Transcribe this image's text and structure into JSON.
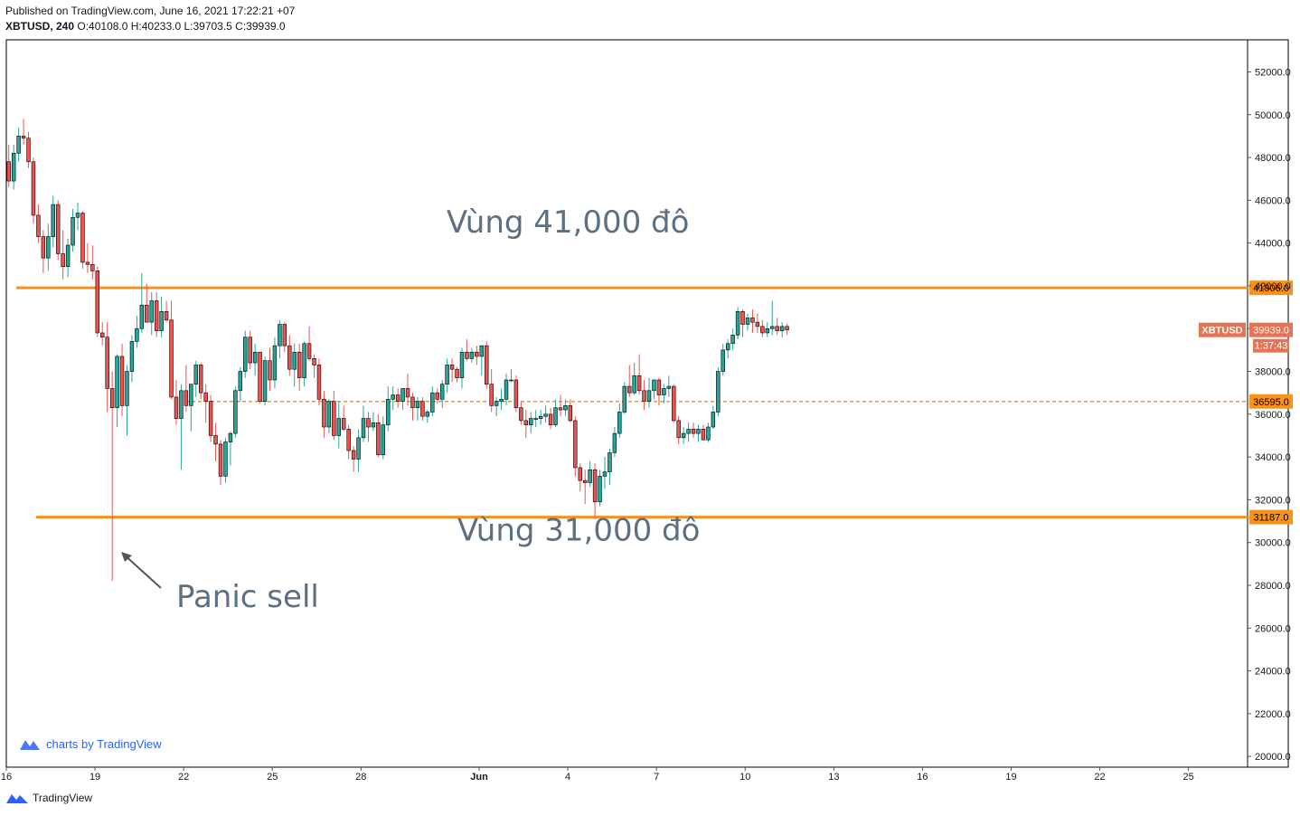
{
  "header": {
    "published": "Published on TradingView.com, June 16, 2021 17:22:21 +07",
    "symbol": "XBTUSD, 240",
    "ohlc": "O:40108.0 H:40233.0 L:39703.5 C:39939.0"
  },
  "footer": {
    "brand": "TradingView",
    "watermark": "charts by TradingView"
  },
  "colors": {
    "up": "#26a69a",
    "down": "#ef5350",
    "level": "#f7931a",
    "annotation": "#5d6f80",
    "price_tag": "#e57356"
  },
  "chart_data": {
    "type": "candlestick",
    "title": "XBTUSD, 240",
    "ylim": [
      19500,
      53500
    ],
    "xlim": [
      "2021-05-16",
      "2021-06-27"
    ],
    "y_ticks": [
      20000,
      22000,
      24000,
      26000,
      28000,
      30000,
      32000,
      34000,
      36000,
      38000,
      40000,
      42000,
      44000,
      46000,
      48000,
      50000,
      52000
    ],
    "x_ticks": [
      {
        "label": "16",
        "date": "2021-05-16"
      },
      {
        "label": "19",
        "date": "2021-05-19"
      },
      {
        "label": "22",
        "date": "2021-05-22"
      },
      {
        "label": "25",
        "date": "2021-05-25"
      },
      {
        "label": "28",
        "date": "2021-05-28"
      },
      {
        "label": "Jun",
        "date": "2021-06-01"
      },
      {
        "label": "4",
        "date": "2021-06-04"
      },
      {
        "label": "7",
        "date": "2021-06-07"
      },
      {
        "label": "10",
        "date": "2021-06-10"
      },
      {
        "label": "13",
        "date": "2021-06-13"
      },
      {
        "label": "16",
        "date": "2021-06-16"
      },
      {
        "label": "19",
        "date": "2021-06-19"
      },
      {
        "label": "22",
        "date": "2021-06-22"
      },
      {
        "label": "25",
        "date": "2021-06-25"
      }
    ],
    "levels": [
      {
        "price": 41906.0,
        "label": "41906.0",
        "style": "solid"
      },
      {
        "price": 36595.0,
        "label": "36595.0",
        "style": "dashed"
      },
      {
        "price": 31187.0,
        "label": "31187.0",
        "style": "solid"
      }
    ],
    "last_price": {
      "label": "XBTUSD",
      "value": "39939.0",
      "countdown": "1:37:43",
      "price": 39939
    },
    "annotations": [
      {
        "text": "Vùng 41,000 đô",
        "date": "2021-06-04",
        "price": 45000
      },
      {
        "text": "Vùng 31,000 đô",
        "date": "2021-06-04",
        "price": 30600
      },
      {
        "text": "Panic sell",
        "date": "2021-05-21",
        "price": 27500
      }
    ],
    "candle_start": "2021-05-16T00:00",
    "candle_hours": 4,
    "candles": [
      [
        47800,
        48600,
        46600,
        46900
      ],
      [
        46900,
        48600,
        46500,
        48200
      ],
      [
        48200,
        49400,
        47800,
        49000
      ],
      [
        49000,
        49800,
        48600,
        48900
      ],
      [
        48900,
        49200,
        47500,
        47800
      ],
      [
        47800,
        48000,
        44900,
        45300
      ],
      [
        45300,
        45800,
        44000,
        44300
      ],
      [
        44300,
        44600,
        42600,
        43300
      ],
      [
        43300,
        44900,
        42700,
        44300
      ],
      [
        44300,
        46200,
        43800,
        45800
      ],
      [
        45800,
        46000,
        43200,
        43500
      ],
      [
        43500,
        44600,
        42300,
        42900
      ],
      [
        42900,
        44200,
        42400,
        43900
      ],
      [
        43900,
        45600,
        43600,
        45200
      ],
      [
        45200,
        45900,
        44600,
        45400
      ],
      [
        45400,
        45500,
        42800,
        43100
      ],
      [
        43100,
        44000,
        42600,
        43000
      ],
      [
        43000,
        43900,
        42300,
        42700
      ],
      [
        42700,
        42900,
        39600,
        39800
      ],
      [
        39800,
        40300,
        39200,
        39600
      ],
      [
        39600,
        40300,
        36100,
        37200
      ],
      [
        37200,
        38000,
        28200,
        36300
      ],
      [
        36300,
        38800,
        35400,
        38700
      ],
      [
        38700,
        39300,
        35900,
        36400
      ],
      [
        36400,
        38300,
        35000,
        38000
      ],
      [
        38000,
        39700,
        37500,
        39400
      ],
      [
        39400,
        40600,
        39100,
        40000
      ],
      [
        40000,
        42600,
        39800,
        41100
      ],
      [
        41100,
        42100,
        40600,
        40300
      ],
      [
        40300,
        41700,
        39700,
        41300
      ],
      [
        41300,
        41700,
        39600,
        39900
      ],
      [
        39900,
        41500,
        39600,
        40800
      ],
      [
        40800,
        41300,
        40300,
        40400
      ],
      [
        40400,
        41300,
        36700,
        36800
      ],
      [
        36800,
        37600,
        35500,
        35800
      ],
      [
        35800,
        37400,
        33400,
        37100
      ],
      [
        37100,
        38300,
        36100,
        36400
      ],
      [
        36400,
        37200,
        35200,
        37400
      ],
      [
        37400,
        38500,
        36800,
        38300
      ],
      [
        38300,
        38400,
        36700,
        37000
      ],
      [
        37000,
        37400,
        35600,
        36600
      ],
      [
        36600,
        36900,
        34700,
        35000
      ],
      [
        35000,
        35600,
        33800,
        34600
      ],
      [
        34600,
        34800,
        32700,
        33100
      ],
      [
        33100,
        34900,
        32800,
        34700
      ],
      [
        34700,
        35200,
        33600,
        35100
      ],
      [
        35100,
        37300,
        34900,
        37100
      ],
      [
        37100,
        38200,
        36600,
        38000
      ],
      [
        38000,
        39900,
        37700,
        39600
      ],
      [
        39600,
        39900,
        38100,
        38400
      ],
      [
        38400,
        39300,
        37800,
        38900
      ],
      [
        38900,
        38900,
        36500,
        36600
      ],
      [
        36600,
        38700,
        36400,
        38500
      ],
      [
        38500,
        39100,
        37100,
        37600
      ],
      [
        37600,
        39600,
        37200,
        39200
      ],
      [
        39200,
        40400,
        38600,
        40200
      ],
      [
        40200,
        40300,
        38900,
        39200
      ],
      [
        39200,
        39700,
        37800,
        38100
      ],
      [
        38100,
        39300,
        37300,
        38900
      ],
      [
        38900,
        39300,
        37100,
        37700
      ],
      [
        37700,
        39400,
        37300,
        39300
      ],
      [
        39300,
        40100,
        38500,
        38600
      ],
      [
        38600,
        38800,
        37700,
        38300
      ],
      [
        38300,
        38600,
        36400,
        36700
      ],
      [
        36700,
        37100,
        34900,
        35400
      ],
      [
        35400,
        36700,
        35100,
        36600
      ],
      [
        36600,
        37100,
        34800,
        35000
      ],
      [
        35000,
        36600,
        34400,
        35800
      ],
      [
        35800,
        36400,
        35200,
        35300
      ],
      [
        35300,
        35500,
        33900,
        34300
      ],
      [
        34300,
        34500,
        33300,
        33900
      ],
      [
        33900,
        35300,
        33300,
        34900
      ],
      [
        34900,
        36400,
        34700,
        35800
      ],
      [
        35800,
        36100,
        34700,
        35400
      ],
      [
        35400,
        36100,
        35200,
        35600
      ],
      [
        35600,
        36000,
        34000,
        34100
      ],
      [
        34100,
        35900,
        33900,
        35500
      ],
      [
        35500,
        37300,
        35200,
        36700
      ],
      [
        36700,
        37300,
        36200,
        36900
      ],
      [
        36900,
        37200,
        36300,
        36600
      ],
      [
        36600,
        37100,
        36200,
        37200
      ],
      [
        37200,
        37900,
        36400,
        36800
      ],
      [
        36800,
        37000,
        35700,
        36300
      ],
      [
        36300,
        36800,
        35700,
        36600
      ],
      [
        36600,
        36800,
        35700,
        35900
      ],
      [
        35900,
        36200,
        35600,
        36100
      ],
      [
        36100,
        37300,
        35900,
        37000
      ],
      [
        37000,
        37200,
        36500,
        36700
      ],
      [
        36700,
        37600,
        36300,
        37400
      ],
      [
        37400,
        38600,
        37000,
        38300
      ],
      [
        38300,
        38600,
        37500,
        38100
      ],
      [
        38100,
        38200,
        37500,
        37700
      ],
      [
        37700,
        39100,
        37200,
        38900
      ],
      [
        38900,
        39500,
        38500,
        38600
      ],
      [
        38600,
        39100,
        38400,
        38900
      ],
      [
        38900,
        39200,
        38300,
        38700
      ],
      [
        38700,
        39000,
        37800,
        39200
      ],
      [
        39200,
        39400,
        37200,
        37400
      ],
      [
        37400,
        38100,
        36100,
        36400
      ],
      [
        36400,
        36800,
        35900,
        36600
      ],
      [
        36600,
        37200,
        36200,
        36700
      ],
      [
        36700,
        37900,
        36400,
        37600
      ],
      [
        37600,
        38100,
        37500,
        37600
      ],
      [
        37600,
        37800,
        36100,
        36300
      ],
      [
        36300,
        36600,
        35500,
        35700
      ],
      [
        35700,
        36200,
        34900,
        35500
      ],
      [
        35500,
        36100,
        35100,
        35800
      ],
      [
        35800,
        36200,
        35400,
        35800
      ],
      [
        35800,
        36200,
        35500,
        35900
      ],
      [
        35900,
        36400,
        35600,
        36000
      ],
      [
        36000,
        36300,
        35300,
        35500
      ],
      [
        35500,
        36700,
        35400,
        36300
      ],
      [
        36300,
        36900,
        35900,
        36200
      ],
      [
        36200,
        36700,
        35900,
        36400
      ],
      [
        36400,
        36700,
        35600,
        35700
      ],
      [
        35700,
        35900,
        33100,
        33500
      ],
      [
        33500,
        33700,
        32400,
        32900
      ],
      [
        32900,
        33400,
        31800,
        32800
      ],
      [
        32800,
        33800,
        32600,
        33400
      ],
      [
        33400,
        33700,
        31100,
        31900
      ],
      [
        31900,
        33400,
        31700,
        33100
      ],
      [
        33100,
        34000,
        32500,
        33300
      ],
      [
        33300,
        34400,
        32700,
        34200
      ],
      [
        34200,
        35400,
        34000,
        35100
      ],
      [
        35100,
        36500,
        34900,
        36100
      ],
      [
        36100,
        37500,
        36000,
        37300
      ],
      [
        37300,
        38300,
        36800,
        37000
      ],
      [
        37000,
        38400,
        36900,
        37800
      ],
      [
        37800,
        38800,
        36900,
        37100
      ],
      [
        37100,
        37600,
        36200,
        36600
      ],
      [
        36600,
        37700,
        36300,
        37100
      ],
      [
        37100,
        37500,
        36700,
        37600
      ],
      [
        37600,
        37700,
        36400,
        36900
      ],
      [
        36900,
        37400,
        36500,
        37200
      ],
      [
        37200,
        37800,
        36800,
        37300
      ],
      [
        37300,
        37400,
        35600,
        35700
      ],
      [
        35700,
        35900,
        34600,
        34900
      ],
      [
        34900,
        35400,
        34600,
        35100
      ],
      [
        35100,
        35600,
        34700,
        35300
      ],
      [
        35300,
        35600,
        34900,
        35100
      ],
      [
        35100,
        35500,
        34700,
        35300
      ],
      [
        35300,
        35500,
        34800,
        34800
      ],
      [
        34800,
        35600,
        34700,
        35400
      ],
      [
        35400,
        36400,
        35300,
        36100
      ],
      [
        36100,
        38200,
        35900,
        38000
      ],
      [
        38000,
        39300,
        37800,
        39000
      ],
      [
        39000,
        39500,
        38600,
        39300
      ],
      [
        39300,
        40000,
        39000,
        39700
      ],
      [
        39700,
        41000,
        39500,
        40800
      ],
      [
        40800,
        40900,
        39600,
        40200
      ],
      [
        40200,
        40700,
        39900,
        40500
      ],
      [
        40500,
        40900,
        39800,
        40300
      ],
      [
        40300,
        40700,
        39800,
        40100
      ],
      [
        40100,
        40400,
        39600,
        39800
      ],
      [
        39800,
        40300,
        39600,
        40000
      ],
      [
        40000,
        41300,
        39700,
        40100
      ],
      [
        40100,
        40500,
        39700,
        39900
      ],
      [
        39900,
        40300,
        39600,
        40100
      ],
      [
        40100,
        40233,
        39703,
        39939
      ]
    ]
  }
}
